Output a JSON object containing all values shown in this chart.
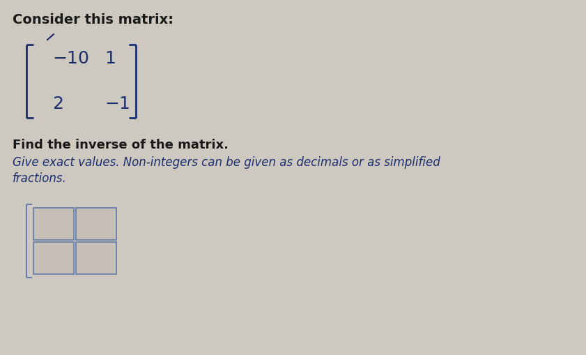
{
  "background_color": "#cdc8c0",
  "title_text": "Consider this matrix:",
  "title_fontsize": 14,
  "title_color": "#1a1a1a",
  "matrix_color": "#1a2e6e",
  "matrix_fontsize": 18,
  "bold_text": "Find the inverse of the matrix.",
  "bold_fontsize": 13,
  "bold_color": "#1a1a1a",
  "italic_line1": "Give exact values. Non-integers can be given as decimals or as simplified",
  "italic_line2": "fractions.",
  "italic_fontsize": 12,
  "italic_color": "#1a2e6e",
  "bracket_color": "#1a2e6e",
  "box_face_color": "#c5bfb8",
  "box_edge_color": "#6a7faa"
}
